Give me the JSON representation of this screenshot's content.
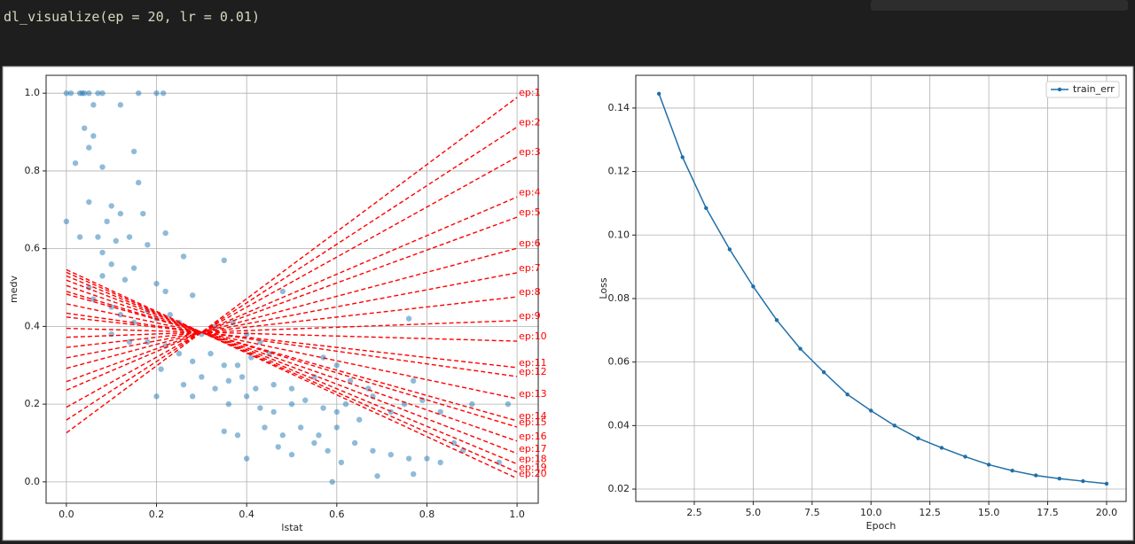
{
  "code": "dl_visualize(ep = 20, lr = 0.01)",
  "chart_data": [
    {
      "type": "scatter",
      "xlabel": "lstat",
      "ylabel": "medv",
      "color": "#1f77b4",
      "grid": true,
      "xlim": [
        -0.045,
        1.047
      ],
      "ylim": [
        -0.055,
        1.046
      ],
      "xticks": [
        {
          "value": 0,
          "label": "0.0"
        },
        {
          "value": 0.2,
          "label": "0.2"
        },
        {
          "value": 0.4,
          "label": "0.4"
        },
        {
          "value": 0.6,
          "label": "0.6"
        },
        {
          "value": 0.8,
          "label": "0.8"
        },
        {
          "value": 1,
          "label": "1.0"
        }
      ],
      "yticks": [
        {
          "value": 0,
          "label": "0.0"
        },
        {
          "value": 0.2,
          "label": "0.2"
        },
        {
          "value": 0.4,
          "label": "0.4"
        },
        {
          "value": 0.6,
          "label": "0.6"
        },
        {
          "value": 0.8,
          "label": "0.8"
        },
        {
          "value": 1,
          "label": "1.0"
        }
      ],
      "x": [
        0.0,
        0.01,
        0.03,
        0.035,
        0.04,
        0.05,
        0.07,
        0.08,
        0.16,
        0.2,
        0.215,
        0.06,
        0.12,
        0.04,
        0.06,
        0.05,
        0.02,
        0.08,
        0.15,
        0.16,
        0.0,
        0.05,
        0.09,
        0.1,
        0.12,
        0.17,
        0.03,
        0.07,
        0.11,
        0.14,
        0.18,
        0.22,
        0.08,
        0.1,
        0.15,
        0.26,
        0.35,
        0.05,
        0.08,
        0.13,
        0.2,
        0.22,
        0.28,
        0.48,
        0.06,
        0.1,
        0.12,
        0.15,
        0.18,
        0.2,
        0.23,
        0.25,
        0.27,
        0.3,
        0.33,
        0.37,
        0.4,
        0.43,
        0.1,
        0.14,
        0.18,
        0.22,
        0.25,
        0.28,
        0.32,
        0.35,
        0.38,
        0.41,
        0.45,
        0.21,
        0.26,
        0.3,
        0.33,
        0.36,
        0.39,
        0.42,
        0.46,
        0.5,
        0.2,
        0.28,
        0.36,
        0.4,
        0.43,
        0.46,
        0.5,
        0.53,
        0.57,
        0.6,
        0.62,
        0.35,
        0.38,
        0.44,
        0.48,
        0.52,
        0.56,
        0.6,
        0.65,
        0.68,
        0.72,
        0.75,
        0.77,
        0.79,
        0.83,
        0.9,
        0.98,
        0.5,
        0.55,
        0.58,
        0.61,
        0.64,
        0.68,
        0.69,
        0.72,
        0.76,
        0.77,
        0.8,
        0.83,
        0.86,
        0.88,
        0.96,
        0.59,
        0.4,
        0.47,
        0.76,
        0.57,
        0.6,
        0.55,
        0.63,
        0.67
      ],
      "values": [
        1,
        1,
        1,
        1,
        1,
        1,
        1,
        1,
        1,
        1,
        1,
        0.97,
        0.97,
        0.91,
        0.89,
        0.86,
        0.82,
        0.81,
        0.85,
        0.77,
        0.67,
        0.72,
        0.67,
        0.71,
        0.69,
        0.69,
        0.63,
        0.63,
        0.62,
        0.63,
        0.61,
        0.64,
        0.59,
        0.56,
        0.55,
        0.58,
        0.57,
        0.5,
        0.53,
        0.52,
        0.51,
        0.49,
        0.48,
        0.49,
        0.47,
        0.45,
        0.43,
        0.41,
        0.44,
        0.42,
        0.43,
        0.41,
        0.39,
        0.38,
        0.4,
        0.41,
        0.38,
        0.36,
        0.38,
        0.36,
        0.36,
        0.35,
        0.33,
        0.31,
        0.33,
        0.3,
        0.3,
        0.32,
        0.33,
        0.29,
        0.25,
        0.27,
        0.24,
        0.26,
        0.27,
        0.24,
        0.25,
        0.24,
        0.22,
        0.22,
        0.2,
        0.22,
        0.19,
        0.18,
        0.2,
        0.21,
        0.19,
        0.18,
        0.2,
        0.13,
        0.12,
        0.14,
        0.12,
        0.14,
        0.12,
        0.14,
        0.16,
        0.22,
        0.18,
        0.2,
        0.26,
        0.21,
        0.18,
        0.2,
        0.2,
        0.07,
        0.1,
        0.08,
        0.05,
        0.1,
        0.08,
        0.015,
        0.07,
        0.06,
        0.02,
        0.06,
        0.05,
        0.1,
        0.08,
        0.05,
        0.0,
        0.06,
        0.09,
        0.42,
        0.32,
        0.3,
        0.27,
        0.26,
        0.24
      ],
      "lines": [
        {
          "name": "ep:1",
          "color": "#ff0000",
          "x": [
            0,
            1
          ],
          "values": [
            0.126,
            0.989
          ]
        },
        {
          "name": "ep:2",
          "color": "#ff0000",
          "x": [
            0,
            1
          ],
          "values": [
            0.159,
            0.913
          ]
        },
        {
          "name": "ep:3",
          "color": "#ff0000",
          "x": [
            0,
            1
          ],
          "values": [
            0.192,
            0.836
          ]
        },
        {
          "name": "ep:4",
          "color": "#ff0000",
          "x": [
            0,
            1
          ],
          "values": [
            0.236,
            0.733
          ]
        },
        {
          "name": "ep:5",
          "color": "#ff0000",
          "x": [
            0,
            1
          ],
          "values": [
            0.258,
            0.681
          ]
        },
        {
          "name": "ep:6",
          "color": "#ff0000",
          "x": [
            0,
            1
          ],
          "values": [
            0.292,
            0.601
          ]
        },
        {
          "name": "ep:7",
          "color": "#ff0000",
          "x": [
            0,
            1
          ],
          "values": [
            0.319,
            0.538
          ]
        },
        {
          "name": "ep:8",
          "color": "#ff0000",
          "x": [
            0,
            1
          ],
          "values": [
            0.346,
            0.476
          ]
        },
        {
          "name": "ep:9",
          "color": "#ff0000",
          "x": [
            0,
            1
          ],
          "values": [
            0.372,
            0.415
          ]
        },
        {
          "name": "ep:10",
          "color": "#ff0000",
          "x": [
            0,
            1
          ],
          "values": [
            0.395,
            0.362
          ]
        },
        {
          "name": "ep:11",
          "color": "#ff0000",
          "x": [
            0,
            1
          ],
          "values": [
            0.424,
            0.294
          ]
        },
        {
          "name": "ep:12",
          "color": "#ff0000",
          "x": [
            0,
            1
          ],
          "values": [
            0.434,
            0.271
          ]
        },
        {
          "name": "ep:13",
          "color": "#ff0000",
          "x": [
            0,
            1
          ],
          "values": [
            0.458,
            0.214
          ]
        },
        {
          "name": "ep:14",
          "color": "#ff0000",
          "x": [
            0,
            1
          ],
          "values": [
            0.483,
            0.157
          ]
        },
        {
          "name": "ep:15",
          "color": "#ff0000",
          "x": [
            0,
            1
          ],
          "values": [
            0.49,
            0.141
          ]
        },
        {
          "name": "ep:16",
          "color": "#ff0000",
          "x": [
            0,
            1
          ],
          "values": [
            0.505,
            0.105
          ]
        },
        {
          "name": "ep:17",
          "color": "#ff0000",
          "x": [
            0,
            1
          ],
          "values": [
            0.519,
            0.073
          ]
        },
        {
          "name": "ep:18",
          "color": "#ff0000",
          "x": [
            0,
            1
          ],
          "values": [
            0.53,
            0.046
          ]
        },
        {
          "name": "ep:19",
          "color": "#ff0000",
          "x": [
            0,
            1
          ],
          "values": [
            0.539,
            0.025
          ]
        },
        {
          "name": "ep:20",
          "color": "#ff0000",
          "x": [
            0,
            1
          ],
          "values": [
            0.546,
            0.009
          ]
        }
      ]
    },
    {
      "type": "line",
      "xlabel": "Epoch",
      "ylabel": "Loss",
      "grid": true,
      "legend": "upper right",
      "xlim": [
        0.016,
        20.83
      ],
      "ylim": [
        0.0161,
        0.1503
      ],
      "xticks": [
        2.5,
        {
          "value": 5,
          "label": "5.0"
        },
        7.5,
        {
          "value": 10,
          "label": "10.0"
        },
        12.5,
        {
          "value": 15,
          "label": "15.0"
        },
        17.5,
        {
          "value": 20,
          "label": "20.0"
        }
      ],
      "yticks": [
        0.02,
        0.04,
        0.06,
        0.08,
        {
          "value": 0.1,
          "label": "0.10"
        },
        0.12,
        0.14
      ],
      "x": [
        1,
        2,
        3,
        4,
        5,
        6,
        7,
        8,
        9,
        10,
        11,
        12,
        13,
        14,
        15,
        16,
        17,
        18,
        19,
        20
      ],
      "series": [
        {
          "name": "train_err",
          "color": "#1f6fa8",
          "values": [
            0.1445,
            0.1245,
            0.1085,
            0.0955,
            0.0838,
            0.0732,
            0.0642,
            0.0568,
            0.0498,
            0.0447,
            0.04,
            0.036,
            0.033,
            0.0302,
            0.0277,
            0.0258,
            0.0243,
            0.0233,
            0.0225,
            0.0217
          ]
        }
      ]
    }
  ]
}
